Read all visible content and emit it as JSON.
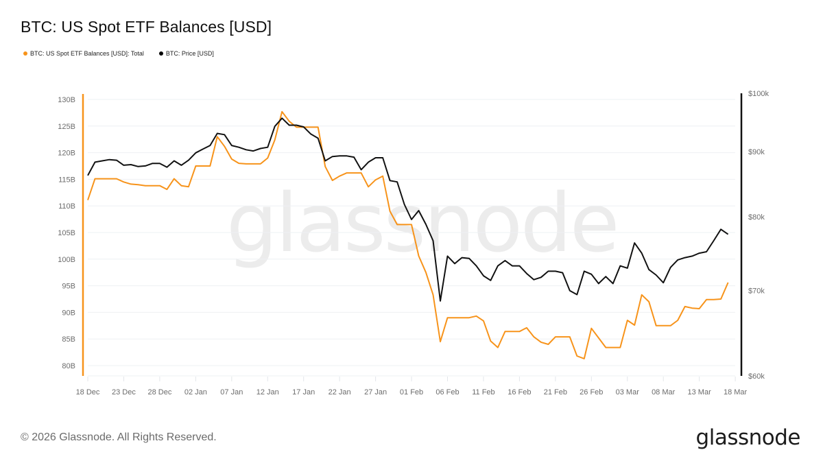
{
  "header": {
    "title": "BTC: US Spot ETF Balances [USD]"
  },
  "legend": [
    {
      "label": "BTC: US Spot ETF Balances [USD]: Total",
      "color": "#f7931a"
    },
    {
      "label": "BTC: Price [USD]",
      "color": "#000000"
    }
  ],
  "watermark": "glassnode",
  "footer": {
    "copyright": "© 2026 Glassnode. All Rights Reserved.",
    "logo": "glassnode"
  },
  "colors": {
    "etf": "#f7931a",
    "price": "#111111",
    "grid": "#eef0f3",
    "axis_text": "#6b6b6b"
  },
  "chart_data": {
    "type": "line",
    "title": "BTC: US Spot ETF Balances [USD]",
    "xlabel": "",
    "ylabel_left": "US Spot ETF Balances [USD]",
    "ylabel_right": "Price [USD]",
    "x_start": "18 Dec",
    "x_end": "18 Mar",
    "x_ticks": [
      "18 Dec",
      "23 Dec",
      "28 Dec",
      "02 Jan",
      "07 Jan",
      "12 Jan",
      "17 Jan",
      "22 Jan",
      "27 Jan",
      "01 Feb",
      "06 Feb",
      "11 Feb",
      "16 Feb",
      "21 Feb",
      "26 Feb",
      "03 Mar",
      "08 Mar",
      "13 Mar",
      "18 Mar"
    ],
    "x_tick_step_days": 5,
    "left_axis": {
      "ticks": [
        "80B",
        "85B",
        "90B",
        "95B",
        "100B",
        "105B",
        "110B",
        "115B",
        "120B",
        "125B",
        "130B"
      ],
      "tick_values": [
        80,
        85,
        90,
        95,
        100,
        105,
        110,
        115,
        120,
        125,
        130
      ],
      "range": [
        79,
        130
      ],
      "unit": "B USD",
      "color": "#f7931a"
    },
    "right_axis": {
      "ticks": [
        "$60k",
        "$70k",
        "$80k",
        "$90k",
        "$100k"
      ],
      "tick_values": [
        60000,
        70000,
        80000,
        90000,
        100000
      ],
      "range": [
        60000,
        100000
      ],
      "scale": "log",
      "color": "#111111"
    },
    "grid": true,
    "legend_position": "top-left",
    "series": [
      {
        "name": "BTC: US Spot ETF Balances [USD]: Total",
        "axis": "left",
        "unit": "B USD",
        "values": [
          111.1,
          115.1,
          115.1,
          115.1,
          115.1,
          114.5,
          114.1,
          114.0,
          113.8,
          113.8,
          113.8,
          113.1,
          115.1,
          113.8,
          113.6,
          117.5,
          117.5,
          117.5,
          123.0,
          121.2,
          118.8,
          118.0,
          117.9,
          117.9,
          117.9,
          119.0,
          122.4,
          127.7,
          125.9,
          124.8,
          124.8,
          124.8,
          124.8,
          117.4,
          114.8,
          115.6,
          116.2,
          116.2,
          116.2,
          113.6,
          114.9,
          115.6,
          109.0,
          106.5,
          106.5,
          106.5,
          100.6,
          97.5,
          93.3,
          84.5,
          89.0,
          89.0,
          89.0,
          89.0,
          89.3,
          88.4,
          84.6,
          83.4,
          86.4,
          86.4,
          86.4,
          87.1,
          85.4,
          84.4,
          84.0,
          85.4,
          85.4,
          85.4,
          81.8,
          81.3,
          87.0,
          85.2,
          83.4,
          83.4,
          83.4,
          88.5,
          87.6,
          93.3,
          92.0,
          87.5,
          87.5,
          87.5,
          88.5,
          91.1,
          90.8,
          90.7,
          92.4,
          92.4,
          92.5,
          95.6
        ]
      },
      {
        "name": "BTC: Price [USD]",
        "axis": "right",
        "unit": "USD",
        "values": [
          86200,
          88300,
          88500,
          88700,
          88600,
          87800,
          87900,
          87600,
          87700,
          88100,
          88100,
          87500,
          88500,
          87800,
          88600,
          89800,
          90400,
          91000,
          93000,
          92800,
          91000,
          90700,
          90300,
          90100,
          90500,
          90700,
          94200,
          95600,
          94400,
          94400,
          94100,
          92900,
          92200,
          88500,
          89200,
          89300,
          89300,
          89100,
          87100,
          88300,
          89000,
          89000,
          85400,
          85200,
          81800,
          79600,
          80900,
          78900,
          76600,
          68700,
          74500,
          73500,
          74300,
          74200,
          73200,
          71900,
          71300,
          73200,
          73900,
          73200,
          73200,
          72200,
          71400,
          71700,
          72500,
          72500,
          72300,
          70000,
          69500,
          72500,
          72100,
          70900,
          71800,
          70900,
          73200,
          72900,
          76300,
          74900,
          72700,
          72000,
          71000,
          73000,
          74000,
          74300,
          74500,
          74900,
          75100,
          76600,
          78200,
          77500
        ]
      }
    ]
  }
}
